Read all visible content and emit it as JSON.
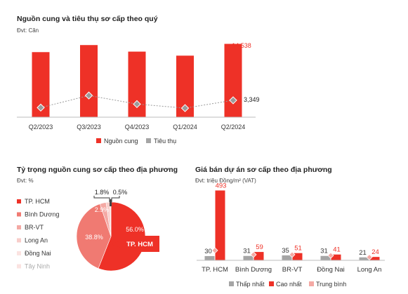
{
  "colors": {
    "red": "#ee3127",
    "gray": "#a5a5a5",
    "red_light": "#f07a72",
    "pink": "#f4a9a4",
    "pink_light": "#f8cdca",
    "pink_pale": "#fbe3e1",
    "text": "#222222",
    "axis": "#bdbdbd"
  },
  "chart_data": [
    {
      "type": "bar",
      "title": "Nguồn cung và tiêu thụ sơ cấp theo quý",
      "unit": "Đvt: Căn",
      "categories": [
        "Q2/2023",
        "Q3/2023",
        "Q4/2023",
        "Q1/2024",
        "Q2/2024"
      ],
      "series": [
        {
          "name": "Nguồn cung",
          "type": "bar",
          "color": "red",
          "values": [
            12900,
            14300,
            13000,
            12200,
            14538
          ]
        },
        {
          "name": "Tiêu thụ",
          "type": "line",
          "color": "gray",
          "values": [
            1900,
            4300,
            2600,
            1800,
            3349
          ]
        }
      ],
      "labels": {
        "last_bar": "14,538",
        "last_point": "3,349"
      },
      "ylim": [
        0,
        16000
      ],
      "legend": "bottom"
    },
    {
      "type": "pie",
      "title": "Tỷ trọng nguồn cung sơ cấp theo địa phương",
      "unit": "Đvt: %",
      "slices": [
        {
          "name": "TP. HCM",
          "value": 56.0,
          "label": "56.0%",
          "color": "red"
        },
        {
          "name": "Bình Dương",
          "value": 38.8,
          "label": "38.8%",
          "color": "red_light"
        },
        {
          "name": "BR-VT",
          "value": 2.9,
          "label": "2.9%",
          "color": "pink"
        },
        {
          "name": "Long An",
          "value": 1.8,
          "label": "1.8%",
          "color": "pink_light"
        },
        {
          "name": "Đồng Nai",
          "value": 0.5,
          "label": "0.5%",
          "color": "pink_pale"
        },
        {
          "name": "Tây Ninh",
          "value": 0.0,
          "label": "",
          "color": "pink_pale"
        }
      ],
      "callout": "TP. HCM",
      "legend": "left"
    },
    {
      "type": "bar",
      "title": "Giá bán dự án sơ cấp theo địa phương",
      "unit": "Đvt: triệu Đồng/m² (VAT)",
      "categories": [
        "TP. HCM",
        "Bình Dương",
        "BR-VT",
        "Đồng Nai",
        "Long An"
      ],
      "series": [
        {
          "name": "Thấp nhất",
          "type": "bar",
          "color": "gray",
          "values": [
            30,
            31,
            35,
            31,
            21
          ]
        },
        {
          "name": "Cao nhất",
          "type": "bar",
          "color": "red",
          "values": [
            493,
            59,
            51,
            41,
            24
          ]
        },
        {
          "name": "Trung bình",
          "type": "marker",
          "color": "pink",
          "values": [
            70,
            40,
            40,
            34,
            22
          ]
        }
      ],
      "ylim": [
        0,
        520
      ],
      "legend": "bottom"
    }
  ]
}
